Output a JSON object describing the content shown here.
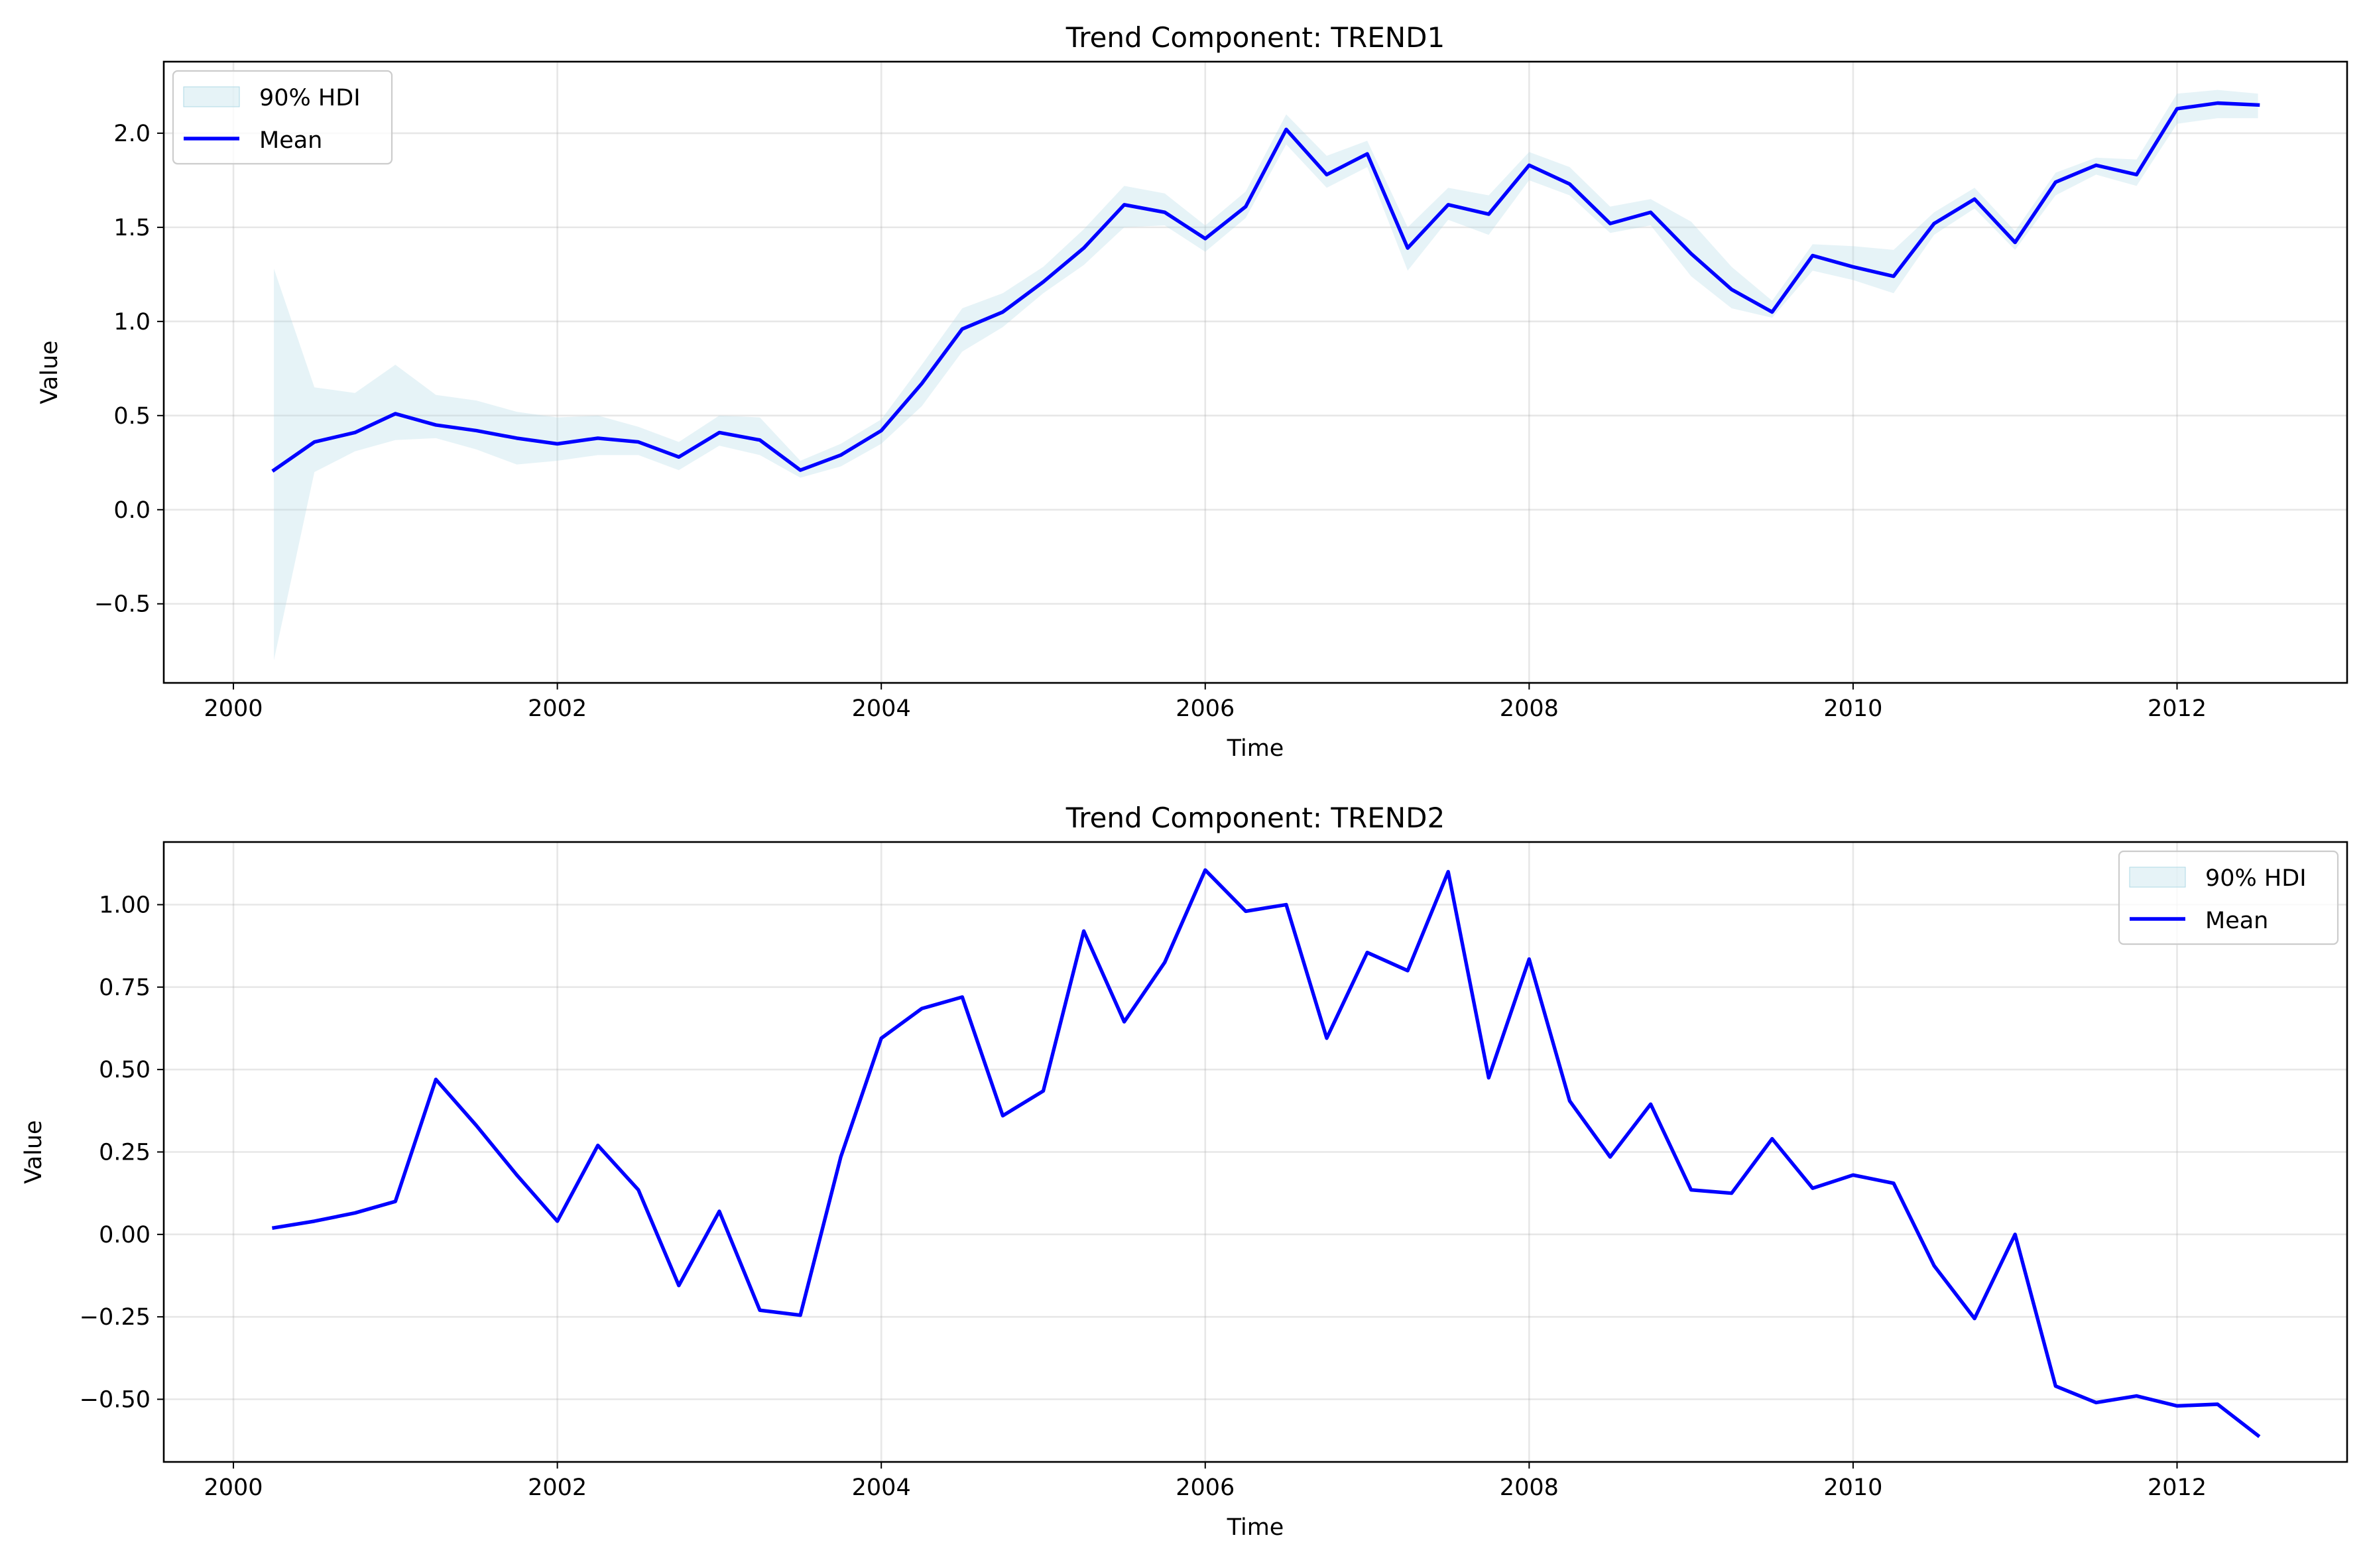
{
  "chart_data": [
    {
      "type": "line",
      "title": "Trend Component: TREND1",
      "xlabel": "Time",
      "ylabel": "Value",
      "xlim": [
        1999.57,
        2013.05
      ],
      "ylim": [
        -0.92,
        2.38
      ],
      "xticks": [
        2000,
        2002,
        2004,
        2006,
        2008,
        2010,
        2012
      ],
      "xtick_labels": [
        "2000",
        "2002",
        "2004",
        "2006",
        "2008",
        "2010",
        "2012"
      ],
      "yticks": [
        -0.5,
        0.0,
        0.5,
        1.0,
        1.5,
        2.0
      ],
      "ytick_labels": [
        "−0.5",
        "0.0",
        "0.5",
        "1.0",
        "1.5",
        "2.0"
      ],
      "grid": true,
      "legend_position": "upper-left",
      "legend": [
        "90% HDI",
        "Mean"
      ],
      "colors": {
        "mean": "#0000ff",
        "hdi": "#add8e6"
      },
      "x": [
        2000.25,
        2000.5,
        2000.75,
        2001.0,
        2001.25,
        2001.5,
        2001.75,
        2002.0,
        2002.25,
        2002.5,
        2002.75,
        2003.0,
        2003.25,
        2003.5,
        2003.75,
        2004.0,
        2004.25,
        2004.5,
        2004.75,
        2005.0,
        2005.25,
        2005.5,
        2005.75,
        2006.0,
        2006.25,
        2006.5,
        2006.75,
        2007.0,
        2007.25,
        2007.5,
        2007.75,
        2008.0,
        2008.25,
        2008.5,
        2008.75,
        2009.0,
        2009.25,
        2009.5,
        2009.75,
        2010.0,
        2010.25,
        2010.5,
        2010.75,
        2011.0,
        2011.25,
        2011.5,
        2011.75,
        2012.0,
        2012.25,
        2012.5
      ],
      "series": [
        {
          "name": "Mean",
          "values": [
            0.21,
            0.36,
            0.41,
            0.51,
            0.45,
            0.42,
            0.38,
            0.35,
            0.38,
            0.36,
            0.28,
            0.41,
            0.37,
            0.21,
            0.29,
            0.42,
            0.67,
            0.96,
            1.05,
            1.21,
            1.39,
            1.62,
            1.58,
            1.44,
            1.61,
            2.02,
            1.78,
            1.89,
            1.39,
            1.62,
            1.57,
            1.83,
            1.73,
            1.52,
            1.58,
            1.36,
            1.17,
            1.05,
            1.35,
            1.29,
            1.24,
            1.52,
            1.65,
            1.42,
            1.74,
            1.83,
            1.78,
            2.13,
            2.16,
            2.15
          ]
        },
        {
          "name": "90% HDI",
          "lower": [
            -0.8,
            0.2,
            0.31,
            0.37,
            0.38,
            0.32,
            0.24,
            0.26,
            0.29,
            0.29,
            0.21,
            0.34,
            0.29,
            0.17,
            0.23,
            0.35,
            0.55,
            0.84,
            0.97,
            1.15,
            1.3,
            1.5,
            1.51,
            1.37,
            1.55,
            1.94,
            1.71,
            1.82,
            1.27,
            1.54,
            1.46,
            1.75,
            1.67,
            1.47,
            1.51,
            1.24,
            1.07,
            1.02,
            1.27,
            1.22,
            1.15,
            1.46,
            1.6,
            1.38,
            1.67,
            1.78,
            1.72,
            2.05,
            2.08,
            2.08
          ],
          "upper": [
            1.28,
            0.65,
            0.62,
            0.77,
            0.61,
            0.58,
            0.52,
            0.49,
            0.5,
            0.44,
            0.36,
            0.5,
            0.49,
            0.26,
            0.35,
            0.48,
            0.77,
            1.07,
            1.15,
            1.29,
            1.49,
            1.72,
            1.68,
            1.51,
            1.69,
            2.1,
            1.88,
            1.96,
            1.5,
            1.71,
            1.67,
            1.9,
            1.82,
            1.61,
            1.65,
            1.53,
            1.29,
            1.11,
            1.41,
            1.4,
            1.38,
            1.58,
            1.71,
            1.48,
            1.79,
            1.87,
            1.86,
            2.21,
            2.23,
            2.21
          ]
        }
      ]
    },
    {
      "type": "line",
      "title": "Trend Component: TREND2",
      "xlabel": "Time",
      "ylabel": "Value",
      "xlim": [
        1999.57,
        2013.05
      ],
      "ylim": [
        -0.69,
        1.19
      ],
      "xticks": [
        2000,
        2002,
        2004,
        2006,
        2008,
        2010,
        2012
      ],
      "xtick_labels": [
        "2000",
        "2002",
        "2004",
        "2006",
        "2008",
        "2010",
        "2012"
      ],
      "yticks": [
        -0.5,
        -0.25,
        0.0,
        0.25,
        0.5,
        0.75,
        1.0
      ],
      "ytick_labels": [
        "−0.50",
        "−0.25",
        "0.00",
        "0.25",
        "0.50",
        "0.75",
        "1.00"
      ],
      "grid": true,
      "legend_position": "upper-right",
      "legend": [
        "90% HDI",
        "Mean"
      ],
      "colors": {
        "mean": "#0000ff",
        "hdi": "#add8e6"
      },
      "x": [
        2000.25,
        2000.5,
        2000.75,
        2001.0,
        2001.25,
        2001.5,
        2001.75,
        2002.0,
        2002.25,
        2002.5,
        2002.75,
        2003.0,
        2003.25,
        2003.5,
        2003.75,
        2004.0,
        2004.25,
        2004.5,
        2004.75,
        2005.0,
        2005.25,
        2005.5,
        2005.75,
        2006.0,
        2006.25,
        2006.5,
        2006.75,
        2007.0,
        2007.25,
        2007.5,
        2007.75,
        2008.0,
        2008.25,
        2008.5,
        2008.75,
        2009.0,
        2009.25,
        2009.5,
        2009.75,
        2010.0,
        2010.25,
        2010.5,
        2010.75,
        2011.0,
        2011.25,
        2011.5,
        2011.75,
        2012.0,
        2012.25,
        2012.5
      ],
      "series": [
        {
          "name": "Mean",
          "values": [
            0.02,
            0.04,
            0.065,
            0.1,
            0.47,
            0.33,
            0.18,
            0.04,
            0.27,
            0.135,
            -0.155,
            0.07,
            -0.23,
            -0.245,
            0.235,
            0.595,
            0.685,
            0.72,
            0.36,
            0.435,
            0.92,
            0.645,
            0.825,
            1.105,
            0.98,
            1.0,
            0.595,
            0.855,
            0.8,
            1.1,
            0.475,
            0.835,
            0.405,
            0.235,
            0.395,
            0.135,
            0.125,
            0.29,
            0.14,
            0.18,
            0.155,
            -0.095,
            -0.255,
            0.0,
            -0.46,
            -0.51,
            -0.49,
            -0.52,
            -0.515,
            -0.61
          ]
        },
        {
          "name": "90% HDI",
          "lower": [
            0.02,
            0.04,
            0.065,
            0.1,
            0.47,
            0.33,
            0.18,
            0.04,
            0.27,
            0.135,
            -0.155,
            0.07,
            -0.23,
            -0.245,
            0.235,
            0.595,
            0.685,
            0.72,
            0.36,
            0.435,
            0.92,
            0.645,
            0.825,
            1.105,
            0.98,
            1.0,
            0.595,
            0.855,
            0.8,
            1.1,
            0.475,
            0.835,
            0.405,
            0.235,
            0.395,
            0.135,
            0.125,
            0.29,
            0.14,
            0.18,
            0.155,
            -0.095,
            -0.255,
            0.0,
            -0.46,
            -0.51,
            -0.49,
            -0.52,
            -0.515,
            -0.61
          ],
          "upper": [
            0.02,
            0.04,
            0.065,
            0.1,
            0.47,
            0.33,
            0.18,
            0.04,
            0.27,
            0.135,
            -0.155,
            0.07,
            -0.23,
            -0.245,
            0.235,
            0.595,
            0.685,
            0.72,
            0.36,
            0.435,
            0.92,
            0.645,
            0.825,
            1.105,
            0.98,
            1.0,
            0.595,
            0.855,
            0.8,
            1.1,
            0.475,
            0.835,
            0.405,
            0.235,
            0.395,
            0.135,
            0.125,
            0.29,
            0.14,
            0.18,
            0.155,
            -0.095,
            -0.255,
            0.0,
            -0.46,
            -0.51,
            -0.49,
            -0.52,
            -0.515,
            -0.61
          ]
        }
      ]
    }
  ]
}
